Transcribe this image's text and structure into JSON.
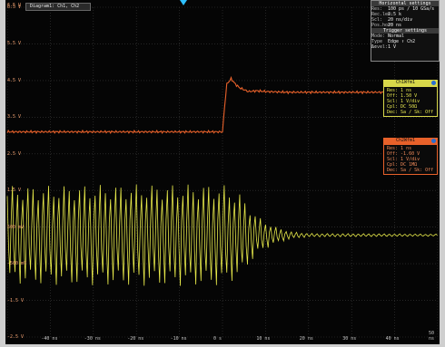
{
  "screen": {
    "diagram_tab": "Diagram1: Ch1, Ch2",
    "top_value": "6.5 V",
    "y_labels": [
      "6.5 V",
      "5.5 V",
      "4.5 V",
      "3.5 V",
      "2.5 V",
      "1.5 V",
      "500 mV",
      "-500 mV",
      "-1.5 V",
      "-2.5 V"
    ],
    "x_labels": [
      "-50 ns",
      "-40 ns",
      "-30 ns",
      "-20 ns",
      "-10 ns",
      "0 s",
      "10 ns",
      "20 ns",
      "30 ns",
      "40 ns",
      "50 ns"
    ],
    "colors": {
      "ch1": "#e6e84a",
      "ch2": "#e8612a",
      "grid": "#3a3a3a",
      "trigger": "#2ec0ff"
    }
  },
  "horizontal_settings": {
    "title": "Horizontal settings",
    "rows": [
      {
        "key": "Res:",
        "value": "100 ps / 10 GSa/s"
      },
      {
        "key": "Rec.len:",
        "value": "2.5 k"
      },
      {
        "key": "Scl:",
        "value": "20 ns/div"
      },
      {
        "key": "Pos.hor:",
        "value": "20 ns"
      }
    ]
  },
  "trigger_settings": {
    "title": "Trigger settings",
    "rows": [
      {
        "key": "Mode:",
        "value": "Normal"
      },
      {
        "key": "Type A:",
        "value": "Edge  ↑  Ch2"
      },
      {
        "key": "Level:",
        "value": "1 V"
      }
    ]
  },
  "ch1_box": {
    "title": "Ch1Wfm1",
    "lines": [
      "Res: 1 ns",
      "Off: 1.50 V",
      "Scl: 1 V/div",
      "Cpl: DC 50Ω",
      "Dec: Sa / Sk: Off"
    ]
  },
  "ch2_box": {
    "title": "Ch2Wfm1",
    "lines": [
      "Res: 1 ns",
      "Off: -1.60 V",
      "Scl: 1 V/div",
      "Cpl: DC 1MΩ",
      "Dec: Sa / Sk: Off"
    ]
  },
  "chart_data": {
    "type": "line",
    "title": "",
    "xlabel": "",
    "ylabel": "",
    "xlim": [
      -50,
      50
    ],
    "x_unit": "ns",
    "grid": true,
    "series": [
      {
        "description": "step",
        "color": "#e8612a",
        "x": [
          -50,
          0,
          0.5,
          1,
          2,
          3,
          4,
          5,
          6,
          8,
          10,
          15,
          20,
          30,
          40,
          50
        ],
        "y": [
          3.1,
          3.1,
          3.8,
          4.4,
          4.55,
          4.4,
          4.3,
          4.25,
          4.2,
          4.22,
          4.2,
          4.18,
          4.18,
          4.18,
          4.18,
          4.18
        ]
      },
      {
        "description": "oscillation",
        "color": "#e6e84a",
        "envelope_x": [
          -50,
          -20,
          0,
          4,
          8,
          12,
          16,
          20,
          50
        ],
        "envelope_amp": [
          1.4,
          1.45,
          1.45,
          1.2,
          0.55,
          0.25,
          0.1,
          0.05,
          0.03
        ],
        "center": 0.28,
        "period_ns": 1.2
      }
    ]
  }
}
